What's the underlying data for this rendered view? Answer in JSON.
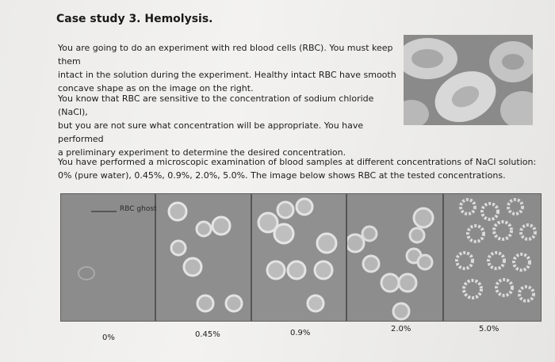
{
  "title": "Case study 3. Hemolysis.",
  "paragraph1": [
    "You are going to do an experiment with red blood cells (RBC). You must keep them",
    "intact in the solution during the experiment.  Healthy intact RBC have smooth",
    "concave shape as on the image on the right."
  ],
  "paragraph2": [
    "You know that RBC are sensitive to the concentration of sodium chloride (NaCl),",
    "but you are not sure what concentration will be appropriate. You have performed",
    "a preliminary experiment to determine the desired concentration."
  ],
  "paragraph3": [
    "You have performed a microscopic examination of blood samples at different concentrations of NaCl solution:",
    "0% (pure water), 0.45%, 0.9%, 2.0%, 5.0%. The image below shows RBC at the tested concentrations."
  ],
  "ghost_label": "RBC ghost",
  "concentration_labels": [
    "0%",
    "0.45%",
    "0.9%",
    "2.0%",
    "5.0%"
  ]
}
